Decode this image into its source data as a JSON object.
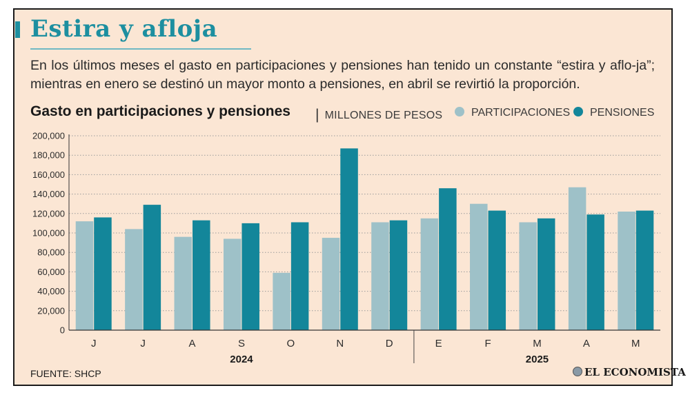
{
  "header": {
    "title": "Estira y afloja",
    "subtitle": "En los últimos meses el gasto en participaciones y pensiones han tenido un constante “estira y aflo-ja”; mientras en enero se destinó un mayor monto a pensiones, en abril se revirtió la proporción."
  },
  "footer": {
    "source": "FUENTE: SHCP",
    "brand": "EL ECONOMISTA"
  },
  "colors": {
    "participaciones": "#9ec1c8",
    "pensiones": "#13869a",
    "accent": "#1d8fa0"
  },
  "chart_data": {
    "type": "bar",
    "title": "Gasto en participaciones y pensiones",
    "units": "MILLONES DE PESOS",
    "categories": [
      "J",
      "J",
      "A",
      "S",
      "O",
      "N",
      "D",
      "E",
      "F",
      "M",
      "A",
      "M"
    ],
    "years": [
      {
        "label": "2024",
        "from": 0,
        "to": 6
      },
      {
        "label": "2025",
        "from": 7,
        "to": 11
      }
    ],
    "series": [
      {
        "name": "PARTICIPACIONES",
        "values": [
          112000,
          104000,
          96000,
          94000,
          59000,
          95000,
          111000,
          115000,
          130000,
          111000,
          147000,
          122000
        ]
      },
      {
        "name": "PENSIONES",
        "values": [
          116000,
          129000,
          113000,
          110000,
          111000,
          187000,
          113000,
          146000,
          123000,
          115000,
          119000,
          123000
        ]
      }
    ],
    "yticks": [
      "0",
      "20,000",
      "40,000",
      "60,000",
      "80,000",
      "100,000",
      "120,000",
      "140,000",
      "160,000",
      "180,000",
      "200,000"
    ],
    "ylim": [
      0,
      200000
    ],
    "legend_position": "top-right",
    "grid": true
  }
}
